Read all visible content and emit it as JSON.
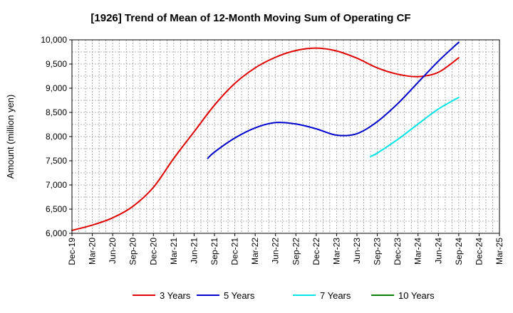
{
  "chart_data": {
    "type": "line",
    "title": "[1926]  Trend of Mean of 12-Month Moving Sum of Operating CF",
    "xlabel": "",
    "ylabel": "Amount (million yen)",
    "ylim": [
      6000,
      10000
    ],
    "grid": true,
    "legend_position": "bottom",
    "x_ticks": [
      "Dec-19",
      "Mar-20",
      "Jun-20",
      "Sep-20",
      "Dec-20",
      "Mar-21",
      "Jun-21",
      "Sep-21",
      "Dec-21",
      "Mar-22",
      "Jun-22",
      "Sep-22",
      "Dec-22",
      "Mar-23",
      "Jun-23",
      "Sep-23",
      "Dec-23",
      "Mar-24",
      "Jun-24",
      "Sep-24",
      "Dec-24",
      "Mar-25"
    ],
    "y_ticks": [
      6000,
      6500,
      7000,
      7500,
      8000,
      8500,
      9000,
      9500,
      10000
    ],
    "y_tick_labels": [
      "6,000",
      "6,500",
      "7,000",
      "7,500",
      "8,000",
      "8,500",
      "9,000",
      "9,500",
      "10,000"
    ],
    "series": [
      {
        "name": "3 Years",
        "color": "#e00000",
        "x": [
          0,
          1,
          2,
          3,
          4,
          5,
          6,
          7,
          8,
          9,
          10,
          11,
          12,
          13,
          14,
          15,
          16,
          17,
          18,
          19
        ],
        "values": [
          6060,
          6170,
          6320,
          6560,
          6950,
          7550,
          8100,
          8650,
          9100,
          9420,
          9640,
          9780,
          9830,
          9770,
          9620,
          9420,
          9290,
          9240,
          9330,
          9630
        ]
      },
      {
        "name": "5 Years",
        "color": "#0000cc",
        "x": [
          6.67,
          7,
          8,
          9,
          10,
          11,
          12,
          13,
          14,
          15,
          16,
          17,
          18,
          19
        ],
        "values": [
          7550,
          7680,
          7970,
          8180,
          8290,
          8260,
          8160,
          8030,
          8060,
          8310,
          8680,
          9120,
          9560,
          9950
        ]
      },
      {
        "name": "7 Years",
        "color": "#00e5e5",
        "x": [
          14.67,
          15,
          16,
          17,
          18,
          19
        ],
        "values": [
          7590,
          7660,
          7940,
          8260,
          8570,
          8810
        ]
      },
      {
        "name": "10 Years",
        "color": "#008000",
        "x": [],
        "values": []
      }
    ]
  }
}
